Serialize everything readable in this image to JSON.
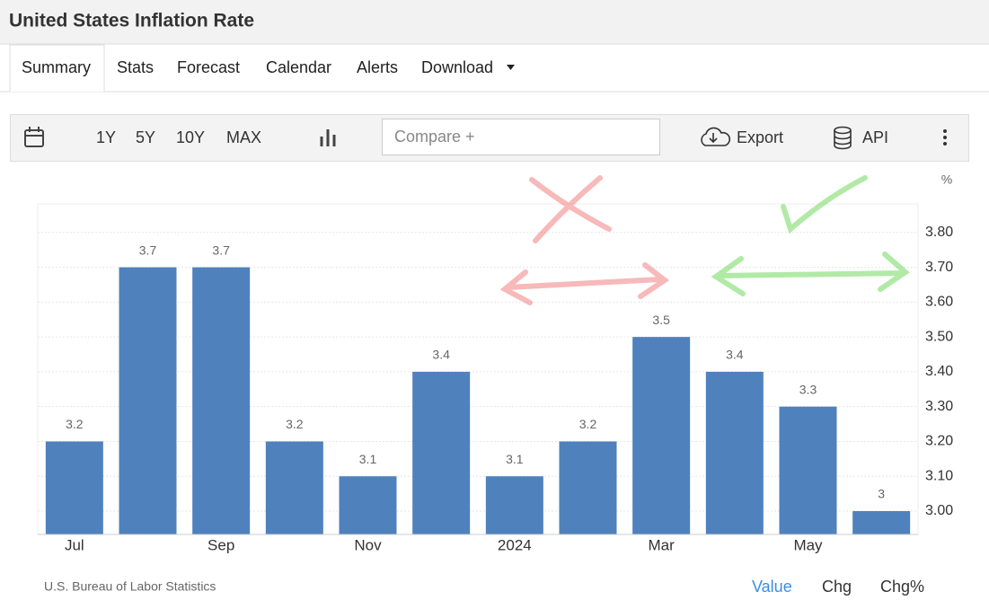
{
  "header": {
    "title": "United States Inflation Rate"
  },
  "tabs": [
    "Summary",
    "Stats",
    "Forecast",
    "Calendar",
    "Alerts",
    "Download"
  ],
  "toolbar": {
    "ranges": [
      "1Y",
      "5Y",
      "10Y",
      "MAX"
    ],
    "compare": "Compare +",
    "export": "Export",
    "api": "API"
  },
  "chart_data": {
    "type": "bar",
    "y_unit": "%",
    "categories": [
      "Jul",
      null,
      "Sep",
      null,
      "Nov",
      null,
      "2024",
      null,
      "Mar",
      null,
      "May",
      null
    ],
    "values": [
      3.2,
      3.7,
      3.7,
      3.2,
      3.1,
      3.4,
      3.1,
      3.2,
      3.5,
      3.4,
      3.3,
      3
    ],
    "color": "#4f81bd",
    "ylim": [
      2.933,
      3.882
    ],
    "yticks": [
      {
        "value": 3,
        "label": "3.00"
      },
      {
        "value": 3.1,
        "label": "3.10"
      },
      {
        "value": 3.2,
        "label": "3.20"
      },
      {
        "value": 3.3,
        "label": "3.30"
      },
      {
        "value": 3.4,
        "label": "3.40"
      },
      {
        "value": 3.5,
        "label": "3.50"
      },
      {
        "value": 3.6,
        "label": "3.60"
      },
      {
        "value": 3.7,
        "label": "3.70"
      },
      {
        "value": 3.8,
        "label": "3.80"
      }
    ],
    "grid": true
  },
  "footer": {
    "source": "U.S. Bureau of Labor Statistics",
    "views": [
      "Value",
      "Chg",
      "Chg%"
    ]
  }
}
